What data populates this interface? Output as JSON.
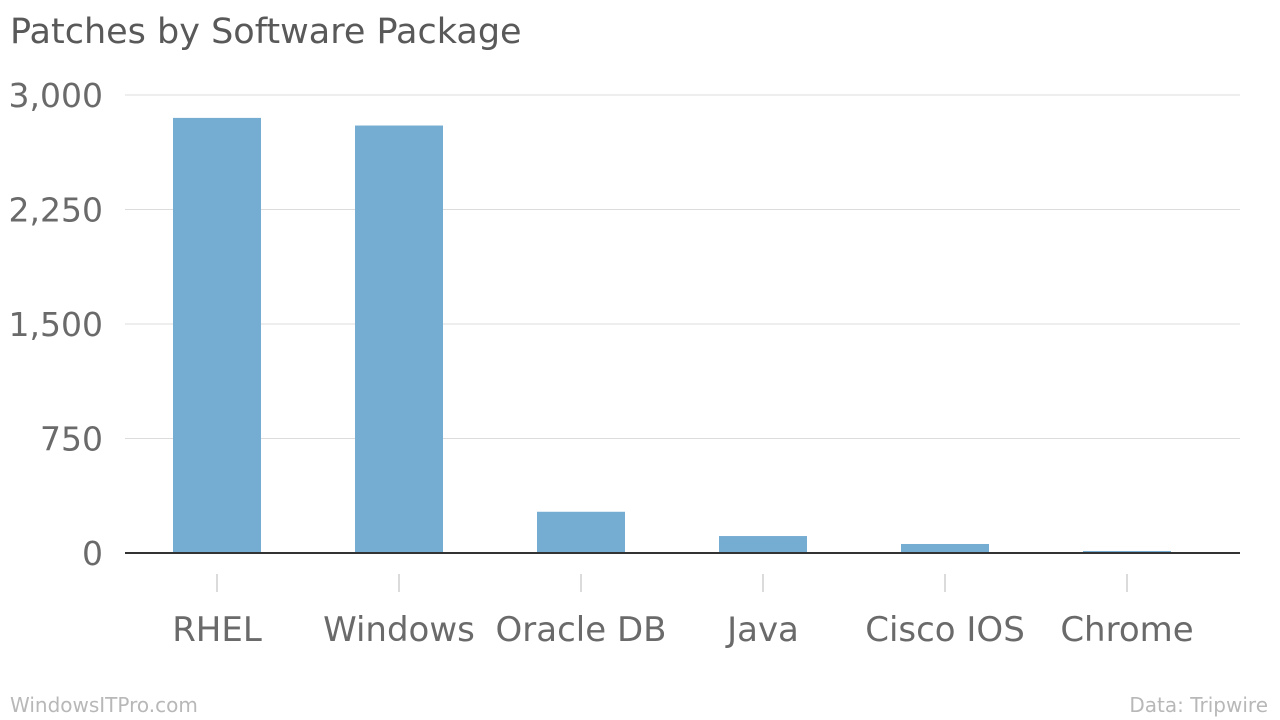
{
  "chart_data": {
    "type": "bar",
    "title": "Patches by Software Package",
    "categories": [
      "RHEL",
      "Windows",
      "Oracle DB",
      "Java",
      "Cisco IOS",
      "Chrome"
    ],
    "values": [
      2850,
      2800,
      270,
      111,
      59,
      13
    ],
    "ylim": [
      0,
      3000
    ],
    "yticks": [
      0,
      750,
      1500,
      2250,
      3000
    ],
    "ytick_labels": [
      "0",
      "750",
      "1,500",
      "2,250",
      "3,000"
    ],
    "xlabel": "",
    "ylabel": "",
    "grid": true,
    "bar_color": "#74acd2"
  },
  "footer": {
    "source_left": "WindowsITPro.com",
    "source_right": "Data: Tripwire"
  }
}
